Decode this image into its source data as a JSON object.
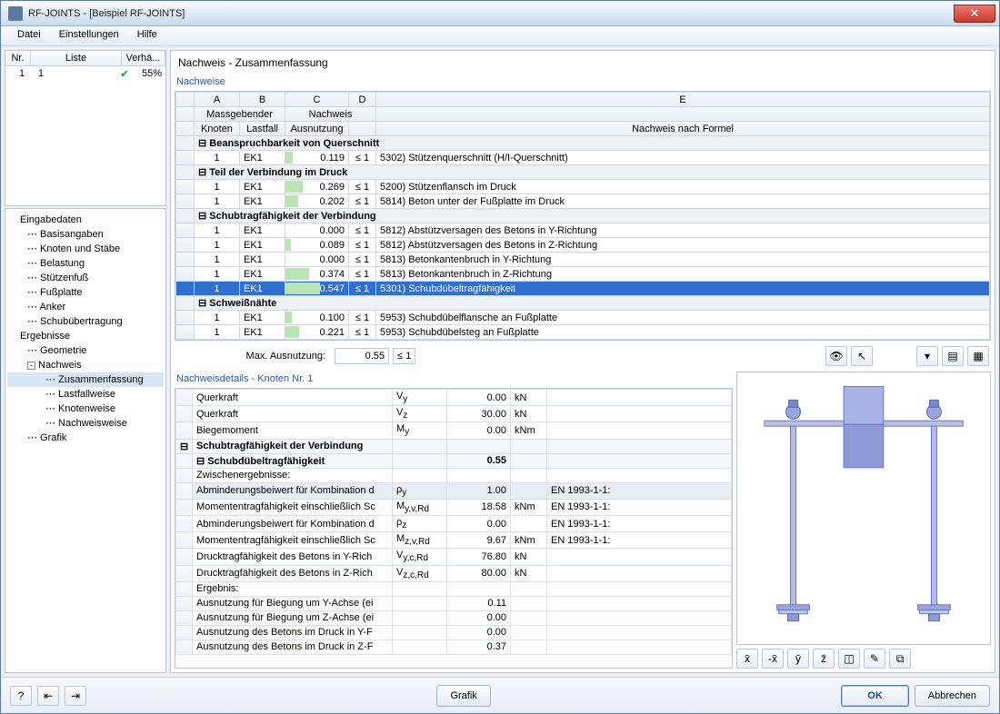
{
  "window": {
    "title": "RF-JOINTS - [Beispiel RF-JOINTS]"
  },
  "menu": [
    "Datei",
    "Einstellungen",
    "Hilfe"
  ],
  "leftlist": {
    "cols": [
      "Nr.",
      "Liste",
      "Verhä..."
    ],
    "rows": [
      {
        "nr": "1",
        "liste": "1",
        "pct": "55%"
      }
    ]
  },
  "tree": {
    "eingabe": "Eingabedaten",
    "eingabe_items": [
      "Basisangaben",
      "Knoten und Stäbe",
      "Belastung",
      "Stützenfuß",
      "Fußplatte",
      "Anker",
      "Schubübertragung"
    ],
    "ergebnisse": "Ergebnisse",
    "ergebnisse_items": [
      "Geometrie"
    ],
    "nachweis": "Nachweis",
    "nachweis_items": [
      "Zusammenfassung",
      "Lastfallweise",
      "Knotenweise",
      "Nachweisweise"
    ],
    "grafik": "Grafik"
  },
  "main": {
    "title": "Nachweis - Zusammenfassung",
    "group": "Nachweise",
    "colhdr_letters": [
      "A",
      "B",
      "C",
      "D",
      "E"
    ],
    "colhdr1": [
      "Massgebender",
      "Nachweis",
      ""
    ],
    "colhdr2": [
      "Knoten",
      "Lastfall",
      "Ausnutzung",
      "",
      "Nachweis nach Formel"
    ],
    "sections": [
      {
        "title": "Beanspruchbarkeit von Querschnitt",
        "rows": [
          {
            "k": "1",
            "lf": "EK1",
            "r": "0.119",
            "le": "≤ 1",
            "txt": "5302) Stützenquerschnitt (H/I-Querschnitt)"
          }
        ]
      },
      {
        "title": "Teil der Verbindung im Druck",
        "rows": [
          {
            "k": "1",
            "lf": "EK1",
            "r": "0.269",
            "le": "≤ 1",
            "txt": "5200) Stützenflansch im Druck"
          },
          {
            "k": "1",
            "lf": "EK1",
            "r": "0.202",
            "le": "≤ 1",
            "txt": "5814) Beton unter der Fußplatte im Druck"
          }
        ]
      },
      {
        "title": "Schubtragfähigkeit der Verbindung",
        "rows": [
          {
            "k": "1",
            "lf": "EK1",
            "r": "0.000",
            "le": "≤ 1",
            "txt": "5812) Abstützversagen des Betons in Y-Richtung"
          },
          {
            "k": "1",
            "lf": "EK1",
            "r": "0.089",
            "le": "≤ 1",
            "txt": "5812) Abstützversagen des Betons in Z-Richtung"
          },
          {
            "k": "1",
            "lf": "EK1",
            "r": "0.000",
            "le": "≤ 1",
            "txt": "5813) Betonkantenbruch in Y-Richtung"
          },
          {
            "k": "1",
            "lf": "EK1",
            "r": "0.374",
            "le": "≤ 1",
            "txt": "5813) Betonkantenbruch in Z-Richtung"
          },
          {
            "k": "1",
            "lf": "EK1",
            "r": "0.547",
            "le": "≤ 1",
            "txt": "5301) Schubdübeltragfähigkeit",
            "sel": true
          }
        ]
      },
      {
        "title": "Schweißnähte",
        "rows": [
          {
            "k": "1",
            "lf": "EK1",
            "r": "0.100",
            "le": "≤ 1",
            "txt": "5953) Schubdübelflansche an Fußplatte"
          },
          {
            "k": "1",
            "lf": "EK1",
            "r": "0.221",
            "le": "≤ 1",
            "txt": "5953) Schubdübelsteg an Fußplatte"
          }
        ]
      }
    ],
    "max_lbl": "Max. Ausnutzung:",
    "max_val": "0.55",
    "max_le": "≤ 1"
  },
  "details": {
    "title": "Nachweisdetails - Knoten Nr. 1",
    "rows": [
      {
        "t": "row",
        "c": [
          "",
          "Querkraft",
          "V_y",
          "0.00",
          "kN",
          ""
        ]
      },
      {
        "t": "row",
        "c": [
          "",
          "Querkraft",
          "V_z",
          "30.00",
          "kN",
          ""
        ]
      },
      {
        "t": "row",
        "c": [
          "",
          "Biegemoment",
          "M_y",
          "0.00",
          "kNm",
          ""
        ]
      },
      {
        "t": "sec",
        "c": [
          "⊟",
          "Schubtragfähigkeit der Verbindung",
          "",
          "",
          "",
          ""
        ]
      },
      {
        "t": "sec",
        "c": [
          "",
          "⊟ Schubdübeltragfähigkeit",
          "",
          "0.55",
          "",
          ""
        ]
      },
      {
        "t": "row",
        "c": [
          "",
          "Zwischenergebnisse:",
          "",
          "",
          "",
          ""
        ]
      },
      {
        "t": "row",
        "c": [
          "",
          "Abminderungsbeiwert für Kombination d",
          "ρ_y",
          "1.00",
          "",
          "EN 1993-1-1:"
        ],
        "hl": true
      },
      {
        "t": "row",
        "c": [
          "",
          "Momententragfähigkeit einschließlich Sc",
          "M_y,v,Rd",
          "18.58",
          "kNm",
          "EN 1993-1-1:"
        ]
      },
      {
        "t": "row",
        "c": [
          "",
          "Abminderungsbeiwert für Kombination d",
          "ρ_z",
          "0.00",
          "",
          "EN 1993-1-1:"
        ]
      },
      {
        "t": "row",
        "c": [
          "",
          "Momententragfähigkeit einschließlich Sc",
          "M_z,v,Rd",
          "9.67",
          "kNm",
          "EN 1993-1-1:"
        ]
      },
      {
        "t": "row",
        "c": [
          "",
          "Drucktragfähigkeit des Betons in Y-Rich",
          "V_y,c,Rd",
          "76.80",
          "kN",
          ""
        ]
      },
      {
        "t": "row",
        "c": [
          "",
          "Drucktragfähigkeit des Betons in Z-Rich",
          "V_z,c,Rd",
          "80.00",
          "kN",
          ""
        ]
      },
      {
        "t": "row",
        "c": [
          "",
          "Ergebnis:",
          "",
          "",
          "",
          ""
        ]
      },
      {
        "t": "row",
        "c": [
          "",
          "Ausnutzung für Biegung um Y-Achse (ei",
          "",
          "0.11",
          "",
          ""
        ]
      },
      {
        "t": "row",
        "c": [
          "",
          "Ausnutzung für Biegung um Z-Achse (ei",
          "",
          "0.00",
          "",
          ""
        ]
      },
      {
        "t": "row",
        "c": [
          "",
          "Ausnutzung des Betons im Druck in Y-F",
          "",
          "0.00",
          "",
          ""
        ]
      },
      {
        "t": "row",
        "c": [
          "",
          "Ausnutzung des Betons im Druck in Z-F",
          "",
          "0.37",
          "",
          ""
        ]
      }
    ]
  },
  "footer": {
    "grafik": "Grafik",
    "ok": "OK",
    "cancel": "Abbrechen"
  },
  "colors": {
    "accent": "#2f6fd0",
    "steel_light": "#c8cdf0",
    "steel_mid": "#9aa4e0",
    "steel_dark": "#6a78c4"
  }
}
